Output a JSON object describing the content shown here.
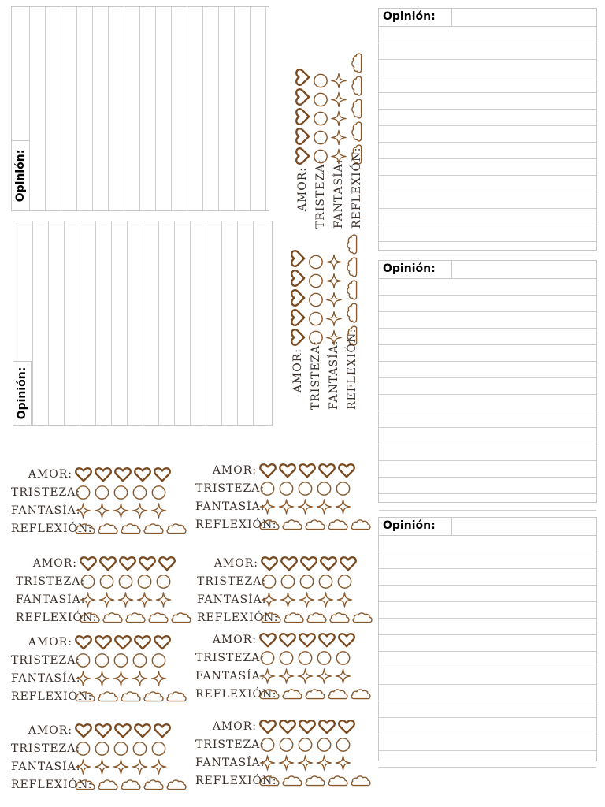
{
  "note_label": "Opinión:",
  "labels": {
    "amor": "Amor:",
    "tristeza": "Tristeza:",
    "fantasia": "Fantasía:",
    "reflexion": "Reflexión:"
  },
  "cards_count": 10,
  "colors": {
    "icon": "#8a5a2f",
    "heart": "#7a4a20",
    "text": "#3a2f29",
    "rule": "#cfcfcf"
  }
}
